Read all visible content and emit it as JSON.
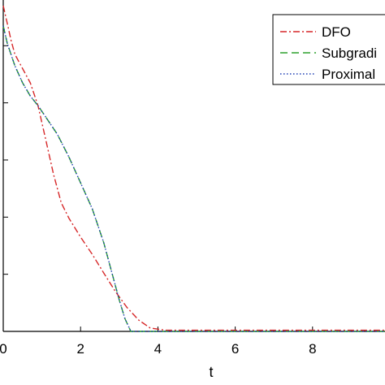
{
  "chart_data": {
    "type": "line",
    "title": "",
    "xlabel": "t",
    "ylabel": "",
    "xlim": [
      0,
      10
    ],
    "ylim": [
      0,
      5.8
    ],
    "xticks": [
      0,
      2,
      4,
      6,
      8
    ],
    "xtick_labels": [
      "0",
      "2",
      "4",
      "6",
      "8"
    ],
    "yticks": [
      1,
      2,
      3,
      4,
      5
    ],
    "grid": false,
    "legend_position": "top-right",
    "series": [
      {
        "name": "DFO",
        "color": "#d62728",
        "dash": "8,3,2,3",
        "x": [
          0,
          0.1,
          0.2,
          0.3,
          0.5,
          0.7,
          0.9,
          1.1,
          1.3,
          1.5,
          1.7,
          2.0,
          2.3,
          2.6,
          2.9,
          3.2,
          3.5,
          3.8,
          4.2,
          5,
          6,
          7,
          8,
          9,
          10
        ],
        "y": [
          5.7,
          5.4,
          5.1,
          4.85,
          4.6,
          4.35,
          3.95,
          3.35,
          2.75,
          2.25,
          1.98,
          1.65,
          1.35,
          1.02,
          0.7,
          0.42,
          0.2,
          0.06,
          0.02,
          0.02,
          0.02,
          0.02,
          0.02,
          0.02,
          0.02
        ]
      },
      {
        "name": "Subgradi",
        "color": "#2ca02c",
        "dash": "9,5",
        "x": [
          0,
          0.1,
          0.2,
          0.3,
          0.5,
          0.7,
          0.9,
          1.1,
          1.4,
          1.7,
          2.0,
          2.3,
          2.6,
          2.8,
          3.0,
          3.15,
          3.3,
          3.5,
          4,
          5,
          6,
          7,
          8,
          9,
          10
        ],
        "y": [
          5.35,
          5.05,
          4.85,
          4.65,
          4.35,
          4.12,
          3.95,
          3.75,
          3.45,
          3.05,
          2.6,
          2.15,
          1.55,
          1.05,
          0.55,
          0.22,
          0.0,
          0.0,
          0.0,
          0.0,
          0.0,
          0.0,
          0.0,
          0.0,
          0.0
        ]
      },
      {
        "name": "Proximal",
        "color": "#1f3fb4",
        "dash": "1.5,2.5",
        "x": [
          0,
          0.1,
          0.2,
          0.3,
          0.5,
          0.7,
          0.9,
          1.1,
          1.4,
          1.7,
          2.0,
          2.3,
          2.6,
          2.8,
          3.0,
          3.15,
          3.3,
          3.5,
          4,
          5,
          6,
          7,
          8,
          9,
          10
        ],
        "y": [
          5.35,
          5.05,
          4.85,
          4.65,
          4.35,
          4.12,
          3.95,
          3.75,
          3.45,
          3.05,
          2.6,
          2.15,
          1.55,
          1.05,
          0.55,
          0.22,
          0.0,
          0.0,
          0.0,
          0.0,
          0.0,
          0.0,
          0.0,
          0.0,
          0.0
        ]
      }
    ]
  }
}
